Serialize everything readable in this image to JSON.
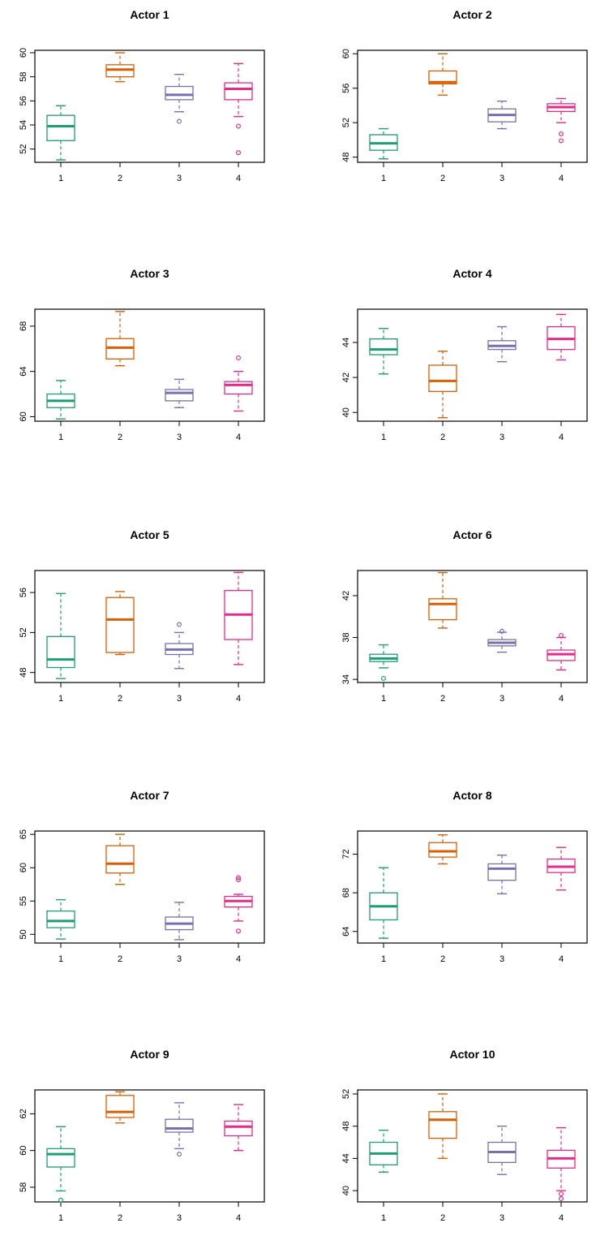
{
  "colors": [
    "#1b9e77",
    "#d95f02",
    "#7570b3",
    "#e7298a"
  ],
  "chart_data": [
    {
      "type": "boxplot",
      "title": "Actor 1",
      "categories": [
        "1",
        "2",
        "3",
        "4"
      ],
      "yticks": [
        52,
        54,
        56,
        58,
        60
      ],
      "ylim": [
        50.9,
        60.2
      ],
      "boxes": [
        {
          "whisker_low": 51.1,
          "q1": 52.7,
          "median": 53.9,
          "q3": 54.8,
          "whisker_high": 55.6,
          "outliers": []
        },
        {
          "whisker_low": 57.6,
          "q1": 58.0,
          "median": 58.6,
          "q3": 59.0,
          "whisker_high": 60.0,
          "outliers": []
        },
        {
          "whisker_low": 55.1,
          "q1": 56.1,
          "median": 56.5,
          "q3": 57.2,
          "whisker_high": 58.2,
          "outliers": [
            54.3
          ]
        },
        {
          "whisker_low": 54.7,
          "q1": 56.1,
          "median": 57.0,
          "q3": 57.5,
          "whisker_high": 59.1,
          "outliers": [
            53.9,
            51.7
          ]
        }
      ]
    },
    {
      "type": "boxplot",
      "title": "Actor 2",
      "categories": [
        "1",
        "2",
        "3",
        "4"
      ],
      "yticks": [
        48,
        52,
        56,
        60
      ],
      "ylim": [
        47.4,
        60.4
      ],
      "boxes": [
        {
          "whisker_low": 47.8,
          "q1": 48.8,
          "median": 49.6,
          "q3": 50.6,
          "whisker_high": 51.3,
          "outliers": []
        },
        {
          "whisker_low": 55.2,
          "q1": 56.5,
          "median": 56.7,
          "q3": 58.0,
          "whisker_high": 60.0,
          "outliers": []
        },
        {
          "whisker_low": 51.3,
          "q1": 52.1,
          "median": 52.9,
          "q3": 53.6,
          "whisker_high": 54.5,
          "outliers": []
        },
        {
          "whisker_low": 52.0,
          "q1": 53.3,
          "median": 53.8,
          "q3": 54.2,
          "whisker_high": 54.8,
          "outliers": [
            50.7,
            49.9
          ]
        }
      ]
    },
    {
      "type": "boxplot",
      "title": "Actor 3",
      "categories": [
        "1",
        "2",
        "3",
        "4"
      ],
      "yticks": [
        60,
        64,
        68
      ],
      "ylim": [
        59.6,
        69.5
      ],
      "boxes": [
        {
          "whisker_low": 59.8,
          "q1": 60.8,
          "median": 61.4,
          "q3": 62.0,
          "whisker_high": 63.2,
          "outliers": []
        },
        {
          "whisker_low": 64.5,
          "q1": 65.1,
          "median": 66.1,
          "q3": 66.9,
          "whisker_high": 69.3,
          "outliers": []
        },
        {
          "whisker_low": 60.8,
          "q1": 61.4,
          "median": 62.1,
          "q3": 62.4,
          "whisker_high": 63.3,
          "outliers": []
        },
        {
          "whisker_low": 60.5,
          "q1": 62.0,
          "median": 62.8,
          "q3": 63.1,
          "whisker_high": 64.0,
          "outliers": [
            65.2
          ]
        }
      ]
    },
    {
      "type": "boxplot",
      "title": "Actor 4",
      "categories": [
        "1",
        "2",
        "3",
        "4"
      ],
      "yticks": [
        40,
        42,
        44
      ],
      "ylim": [
        39.5,
        45.9
      ],
      "boxes": [
        {
          "whisker_low": 42.2,
          "q1": 43.3,
          "median": 43.6,
          "q3": 44.2,
          "whisker_high": 44.8,
          "outliers": []
        },
        {
          "whisker_low": 39.7,
          "q1": 41.2,
          "median": 41.8,
          "q3": 42.7,
          "whisker_high": 43.5,
          "outliers": []
        },
        {
          "whisker_low": 42.9,
          "q1": 43.6,
          "median": 43.8,
          "q3": 44.1,
          "whisker_high": 44.9,
          "outliers": []
        },
        {
          "whisker_low": 43.0,
          "q1": 43.6,
          "median": 44.2,
          "q3": 44.9,
          "whisker_high": 45.6,
          "outliers": []
        }
      ]
    },
    {
      "type": "boxplot",
      "title": "Actor 5",
      "categories": [
        "1",
        "2",
        "3",
        "4"
      ],
      "yticks": [
        48,
        52,
        56
      ],
      "ylim": [
        47.0,
        58.2
      ],
      "boxes": [
        {
          "whisker_low": 47.4,
          "q1": 48.5,
          "median": 49.3,
          "q3": 51.6,
          "whisker_high": 55.9,
          "outliers": []
        },
        {
          "whisker_low": 49.8,
          "q1": 50.0,
          "median": 53.3,
          "q3": 55.5,
          "whisker_high": 56.1,
          "outliers": []
        },
        {
          "whisker_low": 48.4,
          "q1": 49.8,
          "median": 50.3,
          "q3": 50.9,
          "whisker_high": 52.0,
          "outliers": [
            52.8
          ]
        },
        {
          "whisker_low": 48.8,
          "q1": 51.3,
          "median": 53.8,
          "q3": 56.2,
          "whisker_high": 58.0,
          "outliers": []
        }
      ]
    },
    {
      "type": "boxplot",
      "title": "Actor 6",
      "categories": [
        "1",
        "2",
        "3",
        "4"
      ],
      "yticks": [
        34,
        38,
        42
      ],
      "ylim": [
        33.7,
        44.4
      ],
      "boxes": [
        {
          "whisker_low": 35.1,
          "q1": 35.7,
          "median": 36.0,
          "q3": 36.4,
          "whisker_high": 37.3,
          "outliers": [
            34.1
          ]
        },
        {
          "whisker_low": 38.9,
          "q1": 39.7,
          "median": 41.2,
          "q3": 41.7,
          "whisker_high": 44.2,
          "outliers": []
        },
        {
          "whisker_low": 36.6,
          "q1": 37.2,
          "median": 37.5,
          "q3": 37.8,
          "whisker_high": 38.5,
          "outliers": [
            38.6
          ]
        },
        {
          "whisker_low": 34.9,
          "q1": 35.8,
          "median": 36.4,
          "q3": 36.8,
          "whisker_high": 38.0,
          "outliers": [
            38.2
          ]
        }
      ]
    },
    {
      "type": "boxplot",
      "title": "Actor 7",
      "categories": [
        "1",
        "2",
        "3",
        "4"
      ],
      "yticks": [
        50,
        55,
        60,
        65
      ],
      "ylim": [
        48.7,
        65.5
      ],
      "boxes": [
        {
          "whisker_low": 49.3,
          "q1": 51.0,
          "median": 52.0,
          "q3": 53.5,
          "whisker_high": 55.2,
          "outliers": []
        },
        {
          "whisker_low": 57.5,
          "q1": 59.2,
          "median": 60.6,
          "q3": 63.3,
          "whisker_high": 65.0,
          "outliers": []
        },
        {
          "whisker_low": 49.2,
          "q1": 50.7,
          "median": 51.6,
          "q3": 52.6,
          "whisker_high": 54.8,
          "outliers": []
        },
        {
          "whisker_low": 52.0,
          "q1": 54.1,
          "median": 55.0,
          "q3": 55.7,
          "whisker_high": 56.0,
          "outliers": [
            58.2,
            58.5,
            50.5
          ]
        }
      ]
    },
    {
      "type": "boxplot",
      "title": "Actor 8",
      "categories": [
        "1",
        "2",
        "3",
        "4"
      ],
      "yticks": [
        64,
        68,
        72
      ],
      "ylim": [
        62.8,
        74.4
      ],
      "boxes": [
        {
          "whisker_low": 63.3,
          "q1": 65.2,
          "median": 66.6,
          "q3": 68.0,
          "whisker_high": 70.6,
          "outliers": []
        },
        {
          "whisker_low": 71.0,
          "q1": 71.7,
          "median": 72.3,
          "q3": 73.2,
          "whisker_high": 74.0,
          "outliers": []
        },
        {
          "whisker_low": 67.9,
          "q1": 69.3,
          "median": 70.5,
          "q3": 71.0,
          "whisker_high": 71.9,
          "outliers": []
        },
        {
          "whisker_low": 68.3,
          "q1": 70.1,
          "median": 70.7,
          "q3": 71.5,
          "whisker_high": 72.7,
          "outliers": []
        }
      ]
    },
    {
      "type": "boxplot",
      "title": "Actor 9",
      "categories": [
        "1",
        "2",
        "3",
        "4"
      ],
      "yticks": [
        58,
        60,
        62
      ],
      "ylim": [
        57.2,
        63.3
      ],
      "boxes": [
        {
          "whisker_low": 57.8,
          "q1": 59.1,
          "median": 59.8,
          "q3": 60.1,
          "whisker_high": 61.3,
          "outliers": [
            57.3
          ]
        },
        {
          "whisker_low": 61.5,
          "q1": 61.8,
          "median": 62.1,
          "q3": 63.0,
          "whisker_high": 63.2,
          "outliers": []
        },
        {
          "whisker_low": 60.1,
          "q1": 61.0,
          "median": 61.2,
          "q3": 61.7,
          "whisker_high": 62.6,
          "outliers": [
            59.8
          ]
        },
        {
          "whisker_low": 60.0,
          "q1": 60.8,
          "median": 61.3,
          "q3": 61.6,
          "whisker_high": 62.5,
          "outliers": []
        }
      ]
    },
    {
      "type": "boxplot",
      "title": "Actor 10",
      "categories": [
        "1",
        "2",
        "3",
        "4"
      ],
      "yticks": [
        40,
        44,
        48,
        52
      ],
      "ylim": [
        38.6,
        52.5
      ],
      "boxes": [
        {
          "whisker_low": 42.3,
          "q1": 43.2,
          "median": 44.6,
          "q3": 46.0,
          "whisker_high": 47.5,
          "outliers": []
        },
        {
          "whisker_low": 44.0,
          "q1": 46.5,
          "median": 48.8,
          "q3": 49.8,
          "whisker_high": 52.0,
          "outliers": []
        },
        {
          "whisker_low": 42.0,
          "q1": 43.5,
          "median": 44.8,
          "q3": 46.0,
          "whisker_high": 48.0,
          "outliers": []
        },
        {
          "whisker_low": 40.0,
          "q1": 42.8,
          "median": 44.0,
          "q3": 45.0,
          "whisker_high": 47.8,
          "outliers": [
            39.0,
            39.6
          ]
        }
      ]
    }
  ]
}
